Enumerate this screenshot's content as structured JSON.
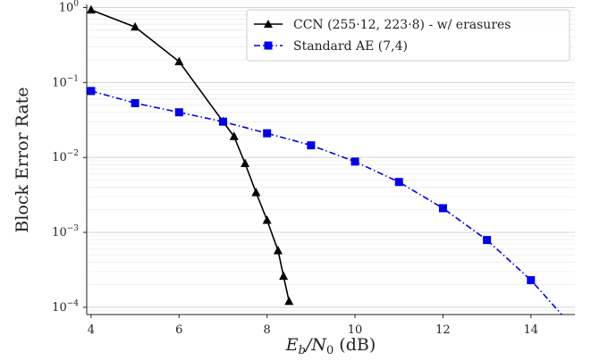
{
  "chart_data": {
    "type": "line",
    "xlabel_base": "E",
    "xlabel_sub1": "b",
    "xlabel_slash": "/N",
    "xlabel_sub2": "0",
    "xlabel_unit": " (dB)",
    "ylabel": "Block Error Rate",
    "xlim": [
      3.9,
      15.0
    ],
    "ylim": [
      8e-05,
      1.1
    ],
    "yscale": "log",
    "grid": true,
    "legend_position": "top-right",
    "x_ticks": [
      4,
      6,
      8,
      10,
      12,
      14
    ],
    "x_tick_labels": [
      "4",
      "6",
      "8",
      "10",
      "12",
      "14"
    ],
    "y_ticks": [
      1,
      0.1,
      0.01,
      0.001,
      0.0001
    ],
    "y_tick_bases": [
      "10",
      "10",
      "10",
      "10",
      "10"
    ],
    "y_tick_exps": [
      "0",
      "−1",
      "−2",
      "−3",
      "−4"
    ],
    "series": [
      {
        "name": "CCN (255·12, 223·8) - w/ erasures",
        "color": "#000000",
        "marker": "triangle",
        "linestyle": "solid",
        "x": [
          4,
          5,
          6,
          7,
          7.25,
          7.5,
          7.75,
          8.0,
          8.25,
          8.375,
          8.5
        ],
        "y": [
          0.93,
          0.55,
          0.19,
          0.03,
          0.019,
          0.0083,
          0.0034,
          0.00145,
          0.00057,
          0.00026,
          0.00012
        ]
      },
      {
        "name": "Standard AE (7,4)",
        "color": "#0000ee",
        "marker": "square",
        "linestyle": "dashdot",
        "x": [
          4,
          5,
          6,
          7,
          8,
          9,
          10,
          11,
          12,
          13,
          14,
          14.7
        ],
        "y": [
          0.077,
          0.053,
          0.04,
          0.03,
          0.021,
          0.0145,
          0.0088,
          0.0047,
          0.0021,
          0.00079,
          0.00023,
          8e-05
        ],
        "markers_shown": 11
      }
    ]
  }
}
